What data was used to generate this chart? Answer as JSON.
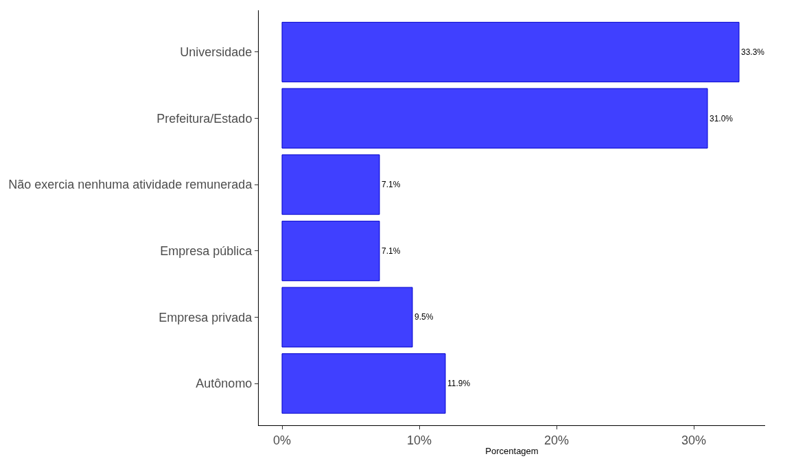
{
  "chart_data": {
    "type": "bar",
    "orientation": "horizontal",
    "xlabel": "Porcentagem",
    "categories": [
      "Universidade",
      "Prefeitura/Estado",
      "Não exercia nenhuma atividade remunerada",
      "Empresa pública",
      "Empresa privada",
      "Autônomo"
    ],
    "values": [
      33.3,
      31.0,
      7.1,
      7.1,
      9.5,
      11.9
    ],
    "value_labels": [
      "33.3%",
      "31.0%",
      "7.1%",
      "7.1%",
      "9.5%",
      "11.9%"
    ],
    "xlim": [
      -1.7,
      35.2
    ],
    "xticks": [
      {
        "value": 0,
        "label": "0%"
      },
      {
        "value": 10,
        "label": "10%"
      },
      {
        "value": 20,
        "label": "20%"
      },
      {
        "value": 30,
        "label": "30%"
      }
    ],
    "color": "#4040ff"
  }
}
